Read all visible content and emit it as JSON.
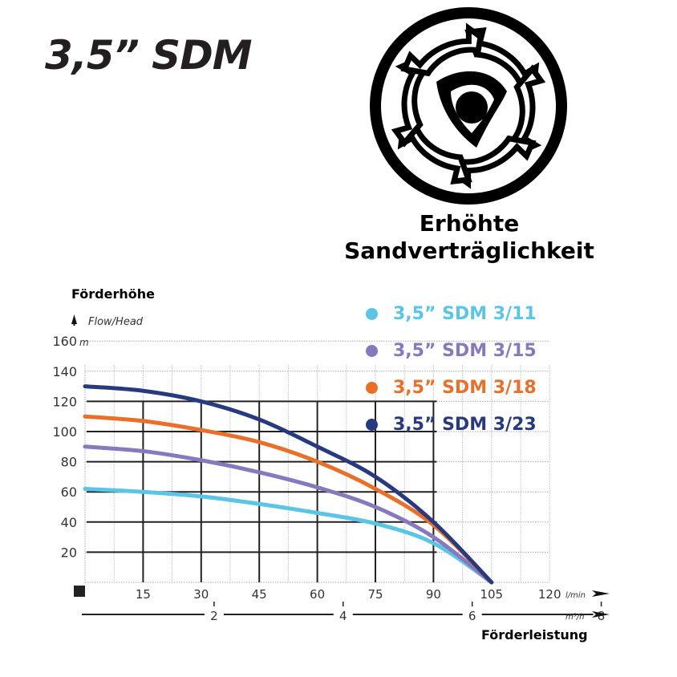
{
  "header": {
    "product_title": "3,5” SDM"
  },
  "badge": {
    "icon": "impeller-sand-icon",
    "caption_line1": "Erhöhte",
    "caption_line2": "Sandverträglichkeit"
  },
  "axis_labels": {
    "y_title_de": "Förderhöhe",
    "y_title_en": "Flow/Head",
    "y_unit": "m",
    "x_title_de": "Förderleistung",
    "x_unit_primary": "l/min",
    "x_unit_secondary": "m³/h"
  },
  "legend": [
    {
      "label": "3,5” SDM 3/11",
      "color": "#5bc5e6"
    },
    {
      "label": "3,5” SDM 3/15",
      "color": "#8878bd"
    },
    {
      "label": "3,5” SDM 3/18",
      "color": "#e8702a"
    },
    {
      "label": "3,5” SDM 3/23",
      "color": "#273a7f"
    }
  ],
  "chart_data": {
    "type": "line",
    "title": "3,5” SDM",
    "xlabel": "Förderleistung (l/min)",
    "ylabel": "Förderhöhe – Flow/Head (m)",
    "x": [
      0,
      15,
      30,
      45,
      60,
      75,
      90,
      105
    ],
    "xlim": [
      0,
      120
    ],
    "ylim": [
      0,
      160
    ],
    "x_ticks": [
      15,
      30,
      45,
      60,
      75,
      90,
      105,
      120
    ],
    "y_ticks": [
      20,
      40,
      60,
      80,
      100,
      120,
      140,
      160
    ],
    "secondary_x_axis": {
      "unit": "m³/h",
      "ticks": [
        2,
        4,
        6,
        8
      ]
    },
    "grid": true,
    "legend_position": "top-right",
    "series": [
      {
        "name": "3,5” SDM 3/11",
        "color": "#5bc5e6",
        "values": [
          62,
          60,
          57,
          52,
          46,
          39,
          26,
          0
        ]
      },
      {
        "name": "3,5” SDM 3/15",
        "color": "#8878bd",
        "values": [
          90,
          87,
          81,
          73,
          63,
          50,
          30,
          0
        ]
      },
      {
        "name": "3,5” SDM 3/18",
        "color": "#e8702a",
        "values": [
          110,
          107,
          101,
          93,
          80,
          62,
          38,
          0
        ]
      },
      {
        "name": "3,5” SDM 3/23",
        "color": "#273a7f",
        "values": [
          130,
          127,
          120,
          108,
          90,
          70,
          40,
          0
        ]
      }
    ]
  }
}
